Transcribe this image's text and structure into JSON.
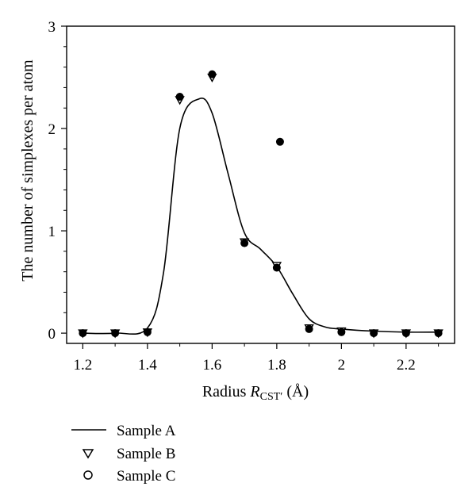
{
  "chart_data": {
    "type": "scatter",
    "xlabel_prefix": "Radius ",
    "xlabel_var": "R",
    "xlabel_sub": "CST′",
    "xlabel_unit": " (Å)",
    "ylabel": "The number of simplexes per atom",
    "xlim": [
      1.15,
      2.35
    ],
    "ylim": [
      -0.1,
      3
    ],
    "xticks": [
      1.2,
      1.4,
      1.6,
      1.8,
      2,
      2.2
    ],
    "xtick_labels": [
      "1.2",
      "1.4",
      "1.6",
      "1.8",
      "2",
      "2.2"
    ],
    "yticks": [
      0,
      1,
      2,
      3
    ],
    "ytick_labels": [
      "0",
      "1",
      "2",
      "3"
    ],
    "x": [
      1.2,
      1.3,
      1.4,
      1.5,
      1.6,
      1.7,
      1.8,
      1.81,
      1.9,
      2.0,
      2.1,
      2.2,
      2.3
    ],
    "series": [
      {
        "name": "Sample A",
        "style": "line",
        "x": [
          1.2,
          1.3,
          1.4,
          1.45,
          1.5,
          1.56,
          1.6,
          1.65,
          1.7,
          1.75,
          1.8,
          1.85,
          1.9,
          1.95,
          2.0,
          2.1,
          2.2,
          2.3
        ],
        "values": [
          0.0,
          0.0,
          0.05,
          0.6,
          2.0,
          2.29,
          2.15,
          1.55,
          0.98,
          0.82,
          0.65,
          0.38,
          0.14,
          0.06,
          0.04,
          0.02,
          0.01,
          0.01
        ]
      },
      {
        "name": "Sample B",
        "style": "triangle-down-open",
        "x": [
          1.2,
          1.3,
          1.4,
          1.5,
          1.6,
          1.7,
          1.8,
          1.9,
          2.0,
          2.1,
          2.2,
          2.3
        ],
        "values": [
          0.0,
          0.0,
          0.01,
          2.28,
          2.5,
          0.89,
          0.66,
          0.05,
          0.02,
          0.0,
          0.0,
          0.0
        ]
      },
      {
        "name": "Sample C",
        "style": "circle-filled",
        "x": [
          1.2,
          1.3,
          1.4,
          1.5,
          1.6,
          1.7,
          1.8,
          1.81,
          1.9,
          2.0,
          2.1,
          2.2,
          2.3
        ],
        "values": [
          0.0,
          0.0,
          0.01,
          2.31,
          2.53,
          0.88,
          0.64,
          1.87,
          0.04,
          0.01,
          0.0,
          0.0,
          0.0
        ]
      }
    ],
    "legend": [
      "Sample A",
      "Sample B",
      "Sample C"
    ],
    "legend_placement": "below",
    "grid": false
  }
}
